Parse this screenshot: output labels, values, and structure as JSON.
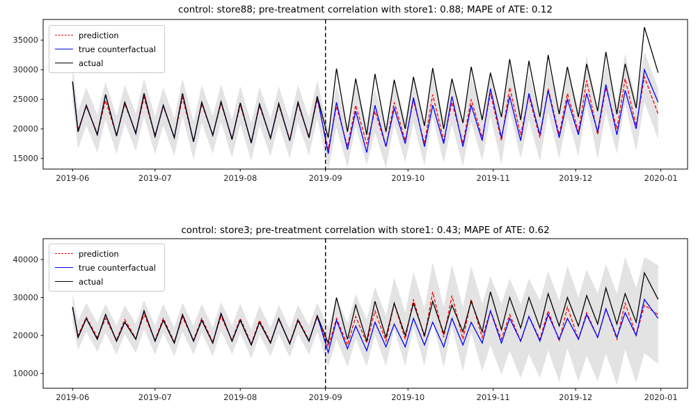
{
  "background": "#ffffff",
  "chart_data": [
    {
      "type": "line",
      "title": "control: store88; pre-treatment correlation with store1: 0.88; MAPE of ATE: 0.12",
      "xlabel": "",
      "ylabel": "",
      "x_units": "days since 2019-06-01",
      "xlim": [
        -10.7,
        223.7
      ],
      "ylim": [
        13200,
        38500
      ],
      "x_ticks": [
        {
          "pos": 0,
          "label": "2019-06"
        },
        {
          "pos": 30,
          "label": "2019-07"
        },
        {
          "pos": 61,
          "label": "2019-08"
        },
        {
          "pos": 92,
          "label": "2019-09"
        },
        {
          "pos": 122,
          "label": "2019-10"
        },
        {
          "pos": 153,
          "label": "2019-11"
        },
        {
          "pos": 183,
          "label": "2019-12"
        },
        {
          "pos": 214,
          "label": "2020-01"
        }
      ],
      "y_ticks": [
        15000,
        20000,
        25000,
        30000,
        35000
      ],
      "treatment_x": 92,
      "grid": false,
      "legend_position": "upper-left",
      "legend": [
        {
          "label": "prediction",
          "color": "#ff0000",
          "dash": true
        },
        {
          "label": "true counterfactual",
          "color": "#0000ff",
          "dash": false
        },
        {
          "label": "actual",
          "color": "#000000",
          "dash": false
        }
      ],
      "band": {
        "center_series": "prediction",
        "color": "rgba(128,128,128,0.22)",
        "pre_margin": 3200,
        "post_margin_start": 3500,
        "post_margin_end": 4300
      },
      "x": [
        0,
        2,
        5,
        9,
        12,
        16,
        19,
        23,
        26,
        30,
        33,
        37,
        40,
        44,
        47,
        51,
        54,
        58,
        61,
        65,
        68,
        72,
        75,
        79,
        82,
        86,
        89,
        93,
        96,
        100,
        103,
        107,
        110,
        114,
        117,
        121,
        124,
        128,
        131,
        135,
        138,
        142,
        145,
        149,
        152,
        156,
        159,
        163,
        166,
        170,
        173,
        177,
        180,
        184,
        187,
        191,
        194,
        198,
        201,
        205,
        208,
        213
      ],
      "series": [
        {
          "name": "prediction",
          "color": "#ff0000",
          "dash": true,
          "values": [
            27800,
            19800,
            23800,
            19200,
            24800,
            18900,
            24200,
            19400,
            25300,
            18900,
            23800,
            18600,
            25300,
            18000,
            24200,
            19000,
            24300,
            18400,
            24000,
            17800,
            23900,
            18500,
            24000,
            18200,
            24200,
            18700,
            25000,
            16500,
            23800,
            17000,
            24000,
            17500,
            23000,
            17000,
            24500,
            18000,
            24800,
            17500,
            25800,
            18000,
            24500,
            17500,
            25000,
            18500,
            26000,
            18000,
            27000,
            19000,
            25500,
            18500,
            26800,
            19000,
            26000,
            19500,
            28200,
            19000,
            27000,
            20000,
            28500,
            20500,
            28800,
            22500
          ]
        },
        {
          "name": "true counterfactual",
          "color": "#0000ff",
          "dash": false,
          "values": [
            28000,
            19500,
            24000,
            19000,
            25800,
            18800,
            24500,
            19200,
            26000,
            18700,
            24000,
            18500,
            26000,
            17800,
            24500,
            18900,
            24600,
            18200,
            24400,
            17600,
            24200,
            18400,
            24300,
            18000,
            24500,
            18500,
            25500,
            15800,
            24500,
            16500,
            23000,
            16000,
            24000,
            17000,
            23500,
            17500,
            25300,
            17000,
            24000,
            17500,
            25500,
            17000,
            24000,
            18000,
            26800,
            18500,
            25500,
            18000,
            26000,
            19000,
            26500,
            18500,
            25000,
            19000,
            26000,
            19500,
            27500,
            19000,
            26500,
            20000,
            30000,
            24500
          ]
        },
        {
          "name": "actual",
          "color": "#000000",
          "dash": false,
          "values": [
            28000,
            19500,
            24000,
            19000,
            25800,
            18800,
            24500,
            19200,
            26000,
            18700,
            24000,
            18500,
            26000,
            17800,
            24500,
            18900,
            24600,
            18200,
            24400,
            17600,
            24200,
            18400,
            24300,
            18000,
            24500,
            18500,
            25500,
            18500,
            30200,
            19500,
            28500,
            19000,
            29300,
            19500,
            28300,
            20000,
            28800,
            20500,
            30300,
            20000,
            28500,
            21000,
            30500,
            21500,
            29500,
            22000,
            31800,
            21500,
            31500,
            22000,
            32500,
            22500,
            30500,
            22000,
            31000,
            23000,
            33000,
            22500,
            31000,
            23500,
            37200,
            29500
          ]
        }
      ]
    },
    {
      "type": "line",
      "title": "control: store3; pre-treatment correlation with store1: 0.43; MAPE of ATE: 0.62",
      "xlabel": "",
      "ylabel": "",
      "x_units": "days since 2019-06-01",
      "xlim": [
        -10.7,
        223.7
      ],
      "ylim": [
        6100,
        45500
      ],
      "x_ticks": [
        {
          "pos": 0,
          "label": "2019-06"
        },
        {
          "pos": 30,
          "label": "2019-07"
        },
        {
          "pos": 61,
          "label": "2019-08"
        },
        {
          "pos": 92,
          "label": "2019-09"
        },
        {
          "pos": 122,
          "label": "2019-10"
        },
        {
          "pos": 153,
          "label": "2019-11"
        },
        {
          "pos": 183,
          "label": "2019-12"
        },
        {
          "pos": 214,
          "label": "2020-01"
        }
      ],
      "y_ticks": [
        10000,
        20000,
        30000,
        40000
      ],
      "treatment_x": 92,
      "grid": false,
      "legend_position": "upper-left",
      "legend": [
        {
          "label": "prediction",
          "color": "#ff0000",
          "dash": true
        },
        {
          "label": "true counterfactual",
          "color": "#0000ff",
          "dash": false
        },
        {
          "label": "actual",
          "color": "#000000",
          "dash": false
        }
      ],
      "band": {
        "center_series": "prediction",
        "color": "rgba(128,128,128,0.22)",
        "pre_margin": 3800,
        "post_margin_start": 5200,
        "post_margin_end": 13000
      },
      "x": [
        0,
        2,
        5,
        9,
        12,
        16,
        19,
        23,
        26,
        30,
        33,
        37,
        40,
        44,
        47,
        51,
        54,
        58,
        61,
        65,
        68,
        72,
        75,
        79,
        82,
        86,
        89,
        93,
        96,
        100,
        103,
        107,
        110,
        114,
        117,
        121,
        124,
        128,
        131,
        135,
        138,
        142,
        145,
        149,
        152,
        156,
        159,
        163,
        166,
        170,
        173,
        177,
        180,
        184,
        187,
        191,
        194,
        198,
        201,
        205,
        208,
        213
      ],
      "series": [
        {
          "name": "prediction",
          "color": "#ff0000",
          "dash": true,
          "values": [
            27200,
            20000,
            24800,
            19500,
            24500,
            18800,
            24200,
            19200,
            25500,
            18800,
            24500,
            18300,
            24800,
            18800,
            24500,
            18300,
            25000,
            18800,
            24500,
            17800,
            24000,
            18300,
            24200,
            18000,
            24300,
            18800,
            24800,
            17000,
            24500,
            17500,
            25000,
            18000,
            26500,
            18500,
            28500,
            19000,
            29500,
            19500,
            31500,
            19500,
            30500,
            19000,
            29500,
            19500,
            26500,
            19000,
            25500,
            18500,
            25000,
            19000,
            26500,
            18500,
            27500,
            19000,
            26000,
            19500,
            27000,
            19000,
            28500,
            20000,
            28000,
            25500
          ]
        },
        {
          "name": "true counterfactual",
          "color": "#0000ff",
          "dash": false,
          "values": [
            27500,
            19500,
            24500,
            19000,
            25500,
            18500,
            23500,
            19000,
            26500,
            18500,
            24000,
            18000,
            25500,
            18500,
            24000,
            18000,
            25800,
            18500,
            24000,
            17500,
            23500,
            18000,
            24500,
            17800,
            24000,
            18500,
            25200,
            15500,
            24000,
            16500,
            22500,
            16000,
            23500,
            17000,
            23000,
            17000,
            24500,
            17500,
            23500,
            17000,
            24500,
            17500,
            23500,
            18000,
            26500,
            18000,
            24500,
            18500,
            25000,
            18500,
            25500,
            19000,
            24500,
            19000,
            25500,
            19500,
            27000,
            19500,
            26000,
            20000,
            29500,
            24500
          ]
        },
        {
          "name": "actual",
          "color": "#000000",
          "dash": false,
          "values": [
            27500,
            19500,
            24500,
            19000,
            25500,
            18500,
            23500,
            19000,
            26500,
            18500,
            24000,
            18000,
            25500,
            18500,
            24000,
            18000,
            25800,
            18500,
            24000,
            17500,
            23500,
            18000,
            24500,
            17800,
            24000,
            18500,
            25200,
            18000,
            30000,
            19000,
            28000,
            18500,
            29000,
            19500,
            28500,
            20000,
            28500,
            20000,
            29000,
            20500,
            28000,
            21000,
            29000,
            21000,
            31500,
            21500,
            30000,
            22000,
            30000,
            22000,
            31000,
            22500,
            30000,
            22500,
            30500,
            23000,
            32500,
            23000,
            31000,
            23500,
            36500,
            29500
          ]
        }
      ]
    }
  ]
}
